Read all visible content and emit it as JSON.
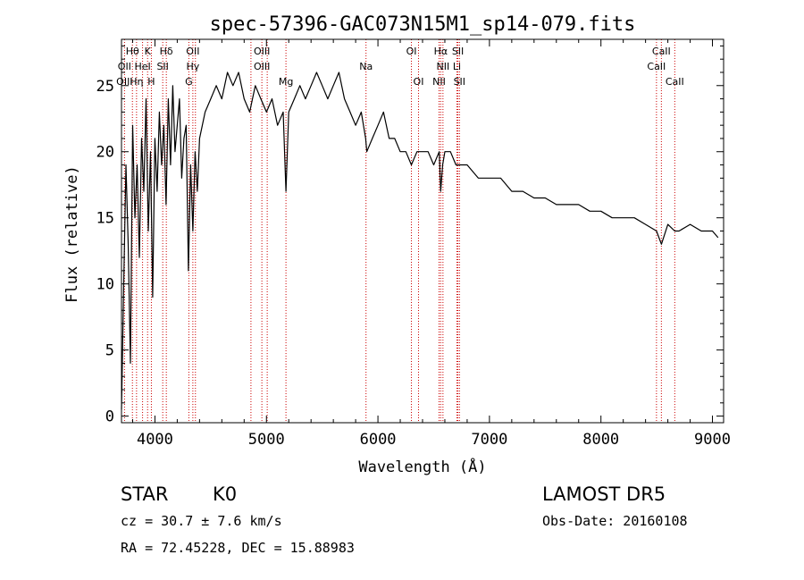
{
  "chart_data": {
    "type": "line",
    "title": "spec-57396-GAC073N15M1_sp14-079.fits",
    "xlabel": "Wavelength (Å)",
    "ylabel": "Flux (relative)",
    "xlim": [
      3700,
      9100
    ],
    "ylim": [
      -0.5,
      28.5
    ],
    "xticks": [
      4000,
      5000,
      6000,
      7000,
      8000,
      9000
    ],
    "yticks": [
      0,
      5,
      10,
      15,
      20,
      25
    ],
    "line_color": "#000000",
    "marker_color": "#cc0000",
    "series": [
      {
        "x": [
          3700,
          3720,
          3740,
          3760,
          3780,
          3800,
          3820,
          3840,
          3860,
          3880,
          3900,
          3920,
          3940,
          3960,
          3980,
          4000,
          4020,
          4040,
          4060,
          4080,
          4100,
          4120,
          4140,
          4160,
          4180,
          4200,
          4220,
          4240,
          4260,
          4280,
          4300,
          4320,
          4340,
          4360,
          4380,
          4400,
          4450,
          4500,
          4550,
          4600,
          4650,
          4700,
          4750,
          4800,
          4850,
          4900,
          4950,
          5000,
          5050,
          5100,
          5150,
          5175,
          5200,
          5250,
          5300,
          5350,
          5400,
          5450,
          5500,
          5550,
          5600,
          5650,
          5700,
          5750,
          5800,
          5850,
          5890,
          5900,
          5950,
          6000,
          6050,
          6100,
          6150,
          6200,
          6250,
          6300,
          6350,
          6400,
          6450,
          6500,
          6550,
          6563,
          6580,
          6600,
          6650,
          6700,
          6750,
          6800,
          6900,
          7000,
          7100,
          7200,
          7300,
          7400,
          7500,
          7600,
          7700,
          7800,
          7900,
          8000,
          8100,
          8200,
          8300,
          8400,
          8498,
          8542,
          8600,
          8662,
          8700,
          8800,
          8900,
          9000,
          9050
        ],
        "y": [
          0.5,
          10,
          19,
          13,
          4,
          22,
          15,
          19,
          12,
          21,
          17,
          24,
          14,
          20,
          9,
          21,
          17,
          23,
          19,
          22,
          16,
          24,
          19,
          25,
          20,
          22,
          24,
          18,
          21,
          22,
          11,
          19,
          14,
          20,
          17,
          21,
          23,
          24,
          25,
          24,
          26,
          25,
          26,
          24,
          23,
          25,
          24,
          23,
          24,
          22,
          23,
          17,
          23,
          24,
          25,
          24,
          25,
          26,
          25,
          24,
          25,
          26,
          24,
          23,
          22,
          23,
          21,
          20,
          21,
          22,
          23,
          21,
          21,
          20,
          20,
          19,
          20,
          20,
          20,
          19,
          20,
          17,
          19,
          20,
          20,
          19,
          19,
          19,
          18,
          18,
          18,
          17,
          17,
          16.5,
          16.5,
          16,
          16,
          16,
          15.5,
          15.5,
          15,
          15,
          15,
          14.5,
          14,
          13,
          14.5,
          14,
          14,
          14.5,
          14,
          14,
          13.5
        ]
      }
    ],
    "line_labels": [
      {
        "name": "Hθ",
        "x": 3798,
        "row": 0
      },
      {
        "name": "K",
        "x": 3934,
        "row": 0
      },
      {
        "name": "Hδ",
        "x": 4102,
        "row": 0
      },
      {
        "name": "OII",
        "x": 4340,
        "row": 0
      },
      {
        "name": "OIII",
        "x": 4959,
        "row": 0
      },
      {
        "name": "OI",
        "x": 6300,
        "row": 0
      },
      {
        "name": "Hα",
        "x": 6563,
        "row": 0
      },
      {
        "name": "SII",
        "x": 6717,
        "row": 0
      },
      {
        "name": "CaII",
        "x": 8542,
        "row": 0
      },
      {
        "name": "OII",
        "x": 3727,
        "row": 1
      },
      {
        "name": "HeI",
        "x": 3889,
        "row": 1
      },
      {
        "name": "SII",
        "x": 4070,
        "row": 1
      },
      {
        "name": "Hγ",
        "x": 4340,
        "row": 1
      },
      {
        "name": "OIII",
        "x": 4959,
        "row": 1
      },
      {
        "name": "Na",
        "x": 5893,
        "row": 1
      },
      {
        "name": "NII",
        "x": 6583,
        "row": 1
      },
      {
        "name": "Li",
        "x": 6708,
        "row": 1
      },
      {
        "name": "CaII",
        "x": 8498,
        "row": 1
      },
      {
        "name": "OIII",
        "x": 3727,
        "row": 2
      },
      {
        "name": "Hη",
        "x": 3835,
        "row": 2
      },
      {
        "name": "H",
        "x": 3968,
        "row": 2
      },
      {
        "name": "G",
        "x": 4304,
        "row": 2
      },
      {
        "name": "Mg",
        "x": 5175,
        "row": 2
      },
      {
        "name": "OI",
        "x": 6364,
        "row": 2
      },
      {
        "name": "NII",
        "x": 6548,
        "row": 2
      },
      {
        "name": "SII",
        "x": 6731,
        "row": 2
      },
      {
        "name": "CaII",
        "x": 8662,
        "row": 2
      }
    ],
    "line_markers": [
      3727,
      3798,
      3835,
      3889,
      3934,
      3968,
      4070,
      4102,
      4304,
      4340,
      4363,
      4861,
      4959,
      5007,
      5175,
      5893,
      6300,
      6364,
      6548,
      6563,
      6583,
      6708,
      6717,
      6731,
      8498,
      8542,
      8662
    ]
  },
  "info": {
    "object_class": "STAR",
    "subclass": "K0",
    "survey": "LAMOST DR5",
    "cz": "cz = 30.7 ± 7.6 km/s",
    "obs_date": "Obs-Date: 20160108",
    "coords": "RA =  72.45228, DEC =  15.88983"
  }
}
